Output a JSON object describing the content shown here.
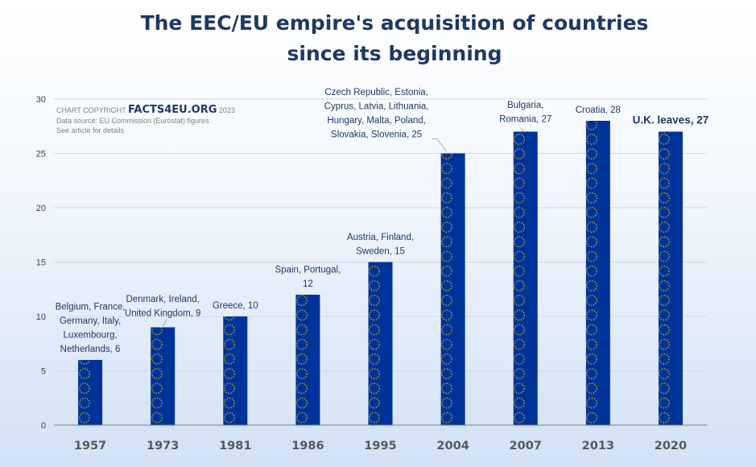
{
  "title_lines": [
    "The EEC/EU empire's acquisition of countries",
    "since its beginning"
  ],
  "credit": {
    "copyright_prefix": "CHART COPYRIGHT",
    "brand": "FACTS4EU.ORG",
    "year": "2023",
    "source": "Data source: EU Commission (Eurostat) figures",
    "note": "See article for details"
  },
  "colors": {
    "bar": "#003399",
    "stars": "#ffcc00",
    "title": "#1f3864"
  },
  "chart_data": {
    "type": "bar",
    "title": "The EEC/EU empire's acquisition of countries since its beginning",
    "categories": [
      "1957",
      "1973",
      "1981",
      "1986",
      "1995",
      "2004",
      "2007",
      "2013",
      "2020"
    ],
    "values": [
      6,
      9,
      10,
      12,
      15,
      25,
      27,
      28,
      27
    ],
    "ylim": [
      0,
      30
    ],
    "yticks": [
      0,
      5,
      10,
      15,
      20,
      25,
      30
    ],
    "grid": true,
    "legend": "none",
    "data_labels": [
      [
        "Belgium, France,",
        "Germany, Italy,",
        "Luxembourg,",
        "Netherlands, 6"
      ],
      [
        "Denmark, Ireland,",
        "United Kingdom, 9"
      ],
      [
        "Greece, 10"
      ],
      [
        "Spain, Portugal,",
        "12"
      ],
      [
        "Austria, Finland,",
        "Sweden, 15"
      ],
      [
        "Czech Republic, Estonia,",
        "Cyprus, Latvia, Lithuania,",
        "Hungary, Malta, Poland,",
        "Slovakia, Slovenia, 25"
      ],
      [
        "Bulgaria,",
        "Romania, 27"
      ],
      [
        "Croatia, 28"
      ],
      [
        "U.K. leaves, 27"
      ]
    ]
  }
}
